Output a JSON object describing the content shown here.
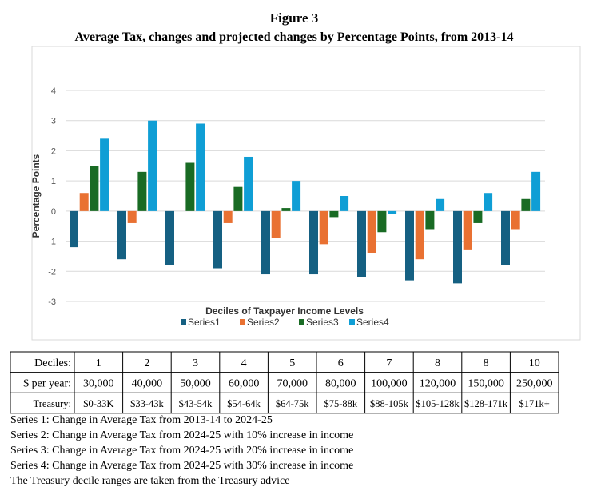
{
  "chart_data": {
    "type": "bar",
    "title": "Figure 3",
    "subtitle": "Average Tax, changes and projected changes by Percentage Points, from 2013-14",
    "y_label": "Percentage Points",
    "x_label": "Deciles of Taxpayer Income Levels",
    "categories": [
      null,
      null,
      null,
      null,
      null,
      null,
      null,
      null,
      null,
      null
    ],
    "series": [
      {
        "name": "Series1",
        "color": "#156082",
        "values": [
          -1.2,
          -1.6,
          -1.8,
          -1.9,
          -2.1,
          -2.1,
          -2.2,
          -2.3,
          -2.4,
          -1.8
        ]
      },
      {
        "name": "Series2",
        "color": "#e97132",
        "values": [
          0.6,
          -0.4,
          0,
          -0.4,
          -0.9,
          -1.1,
          -1.4,
          -1.6,
          -1.3,
          -0.6
        ]
      },
      {
        "name": "Series3",
        "color": "#196b24",
        "values": [
          1.5,
          1.3,
          1.6,
          0.8,
          0.1,
          -0.2,
          -0.7,
          -0.6,
          -0.4,
          0.4
        ]
      },
      {
        "name": "Series4",
        "color": "#0f9ed5",
        "values": [
          2.4,
          3.0,
          2.9,
          1.8,
          1.0,
          0.5,
          -0.1,
          0.4,
          0.6,
          1.3
        ]
      }
    ],
    "ylim": [
      -3,
      4
    ],
    "yticks": [
      -3,
      -2,
      -1,
      0,
      1,
      2,
      3,
      4
    ],
    "grid": true,
    "legend": "bottom"
  },
  "table": {
    "rows": [
      [
        "Deciles:",
        "1",
        "2",
        "3",
        "4",
        "5",
        "6",
        "7",
        "8",
        "8",
        "10"
      ],
      [
        "$ per year:",
        "30,000",
        "40,000",
        "50,000",
        "60,000",
        "70,000",
        "80,000",
        "100,000",
        "120,000",
        "150,000",
        "250,000"
      ],
      [
        "Treasury:",
        "$0-33K",
        "$33-43k",
        "$43-54k",
        "$54-64k",
        "$64-75k",
        "$75-88k",
        "$88-105k",
        "$105-128k",
        "$128-171k",
        "$171k+"
      ]
    ]
  },
  "notes": [
    "Series 1: Change in Average Tax from 2013-14 to 2024-25",
    "Series 2: Change in Average Tax from 2024-25 with 10% increase in income",
    "Series 3: Change in Average Tax from 2024-25 with 20% increase in income",
    "Series 4: Change in Average Tax from 2024-25 with 30% increase in income",
    "The Treasury decile ranges are taken from the Treasury advice"
  ]
}
